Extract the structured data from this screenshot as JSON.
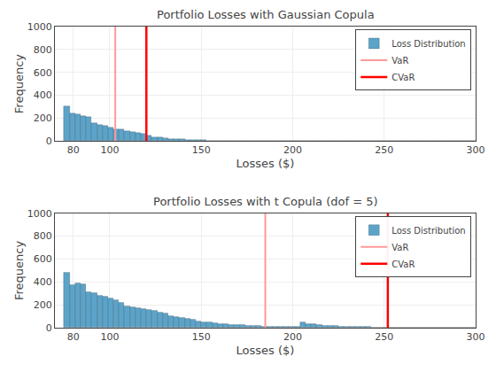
{
  "chart_data": [
    {
      "type": "histogram",
      "title": "Portfolio Losses with Gaussian Copula",
      "xlabel": "Losses ($)",
      "ylabel": "Frequency",
      "bins": [
        75,
        78,
        81,
        84,
        87,
        90,
        93,
        96,
        99,
        102,
        105,
        108,
        111,
        114,
        117,
        120,
        123,
        126,
        129,
        132,
        135,
        138,
        141,
        144,
        147,
        150,
        153,
        156,
        159,
        162,
        165,
        168,
        171,
        174,
        177,
        180,
        183,
        186,
        189,
        192,
        195,
        198,
        201,
        204,
        207,
        210,
        213,
        216,
        219,
        222,
        225,
        228,
        231,
        234,
        237,
        240,
        243,
        246,
        249,
        252,
        255,
        258,
        261,
        264,
        267,
        270,
        273,
        276,
        279,
        282,
        285,
        288,
        291,
        294,
        297,
        300
      ],
      "series": [
        {
          "name": "Loss Distribution",
          "type": "histogram",
          "color": "#5ba3c9",
          "values": [
            300,
            245,
            235,
            220,
            210,
            155,
            140,
            130,
            115,
            100,
            100,
            90,
            80,
            70,
            60,
            45,
            35,
            30,
            25,
            20,
            18,
            15,
            12,
            10,
            8,
            6,
            5,
            3,
            2,
            1,
            1,
            0,
            0,
            0,
            0,
            0,
            0,
            0,
            0,
            0,
            0,
            1,
            0,
            0,
            0,
            0,
            0,
            0,
            0,
            0,
            0,
            0,
            0,
            0,
            0,
            0,
            0,
            0,
            0,
            0,
            0,
            0,
            0,
            0,
            0,
            0,
            0,
            0,
            0,
            0,
            0,
            0,
            0,
            0,
            0
          ]
        },
        {
          "name": "VaR",
          "type": "vline",
          "color": "#ff9999",
          "values": [
            103
          ]
        },
        {
          "name": "CVaR",
          "type": "vline",
          "color": "#ff0000",
          "values": [
            120
          ]
        }
      ],
      "xlim": [
        70,
        300
      ],
      "xticks": [
        80,
        100,
        150,
        200,
        250,
        300
      ],
      "ylim": [
        0,
        1000
      ],
      "yticks": [
        0,
        200,
        400,
        600,
        800,
        1000
      ],
      "grid": true,
      "legend": "upper right"
    },
    {
      "type": "histogram",
      "title": "Portfolio Losses with t Copula (dof = 5)",
      "xlabel": "Losses ($)",
      "ylabel": "Frequency",
      "bins": [
        75,
        78,
        81,
        84,
        87,
        90,
        93,
        96,
        99,
        102,
        105,
        108,
        111,
        114,
        117,
        120,
        123,
        126,
        129,
        132,
        135,
        138,
        141,
        144,
        147,
        150,
        153,
        156,
        159,
        162,
        165,
        168,
        171,
        174,
        177,
        180,
        183,
        186,
        189,
        192,
        195,
        198,
        201,
        204,
        207,
        210,
        213,
        216,
        219,
        222,
        225,
        228,
        231,
        234,
        237,
        240,
        243,
        246,
        249,
        252,
        255,
        258,
        261,
        264,
        267,
        270,
        273,
        276,
        279,
        282,
        285,
        288,
        291,
        294,
        297,
        300
      ],
      "series": [
        {
          "name": "Loss Distribution",
          "type": "histogram",
          "color": "#5ba3c9",
          "values": [
            480,
            375,
            390,
            380,
            310,
            305,
            280,
            270,
            255,
            240,
            220,
            185,
            180,
            175,
            165,
            155,
            145,
            135,
            125,
            105,
            95,
            85,
            78,
            68,
            58,
            50,
            45,
            40,
            35,
            30,
            28,
            25,
            22,
            18,
            16,
            14,
            12,
            10,
            9,
            8,
            7,
            6,
            6,
            45,
            35,
            30,
            25,
            20,
            16,
            14,
            12,
            10,
            9,
            8,
            7,
            6,
            5,
            5,
            4,
            4,
            3,
            3,
            3,
            2,
            2,
            2,
            2,
            2,
            1,
            1,
            1,
            1,
            1,
            1,
            1
          ]
        },
        {
          "name": "VaR",
          "type": "vline",
          "color": "#ff9999",
          "values": [
            185
          ]
        },
        {
          "name": "CVaR",
          "type": "vline",
          "color": "#ff0000",
          "values": [
            252
          ]
        }
      ],
      "xlim": [
        70,
        300
      ],
      "xticks": [
        80,
        100,
        150,
        200,
        250,
        300
      ],
      "ylim": [
        0,
        1000
      ],
      "yticks": [
        0,
        200,
        400,
        600,
        800,
        1000
      ],
      "grid": true,
      "legend": "upper right"
    }
  ]
}
